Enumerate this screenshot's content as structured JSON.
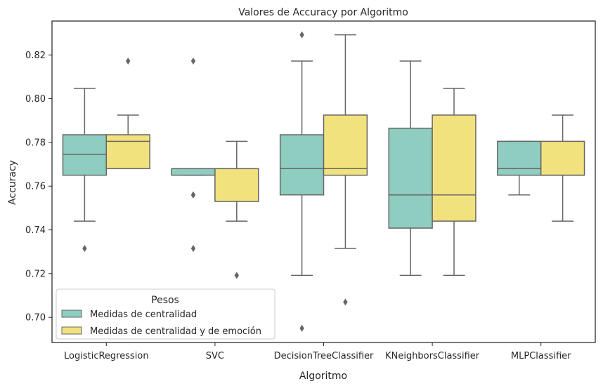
{
  "chart_data": {
    "type": "box",
    "title": "Valores de Accuracy por Algoritmo",
    "xlabel": "Algoritmo",
    "ylabel": "Accuracy",
    "ylim": [
      0.6885,
      0.8355
    ],
    "yticks": [
      0.7,
      0.72,
      0.74,
      0.76,
      0.78,
      0.8,
      0.82
    ],
    "ytick_labels": [
      "0.70",
      "0.72",
      "0.74",
      "0.76",
      "0.78",
      "0.80",
      "0.82"
    ],
    "categories": [
      "LogisticRegression",
      "SVC",
      "DecisionTreeClassifier",
      "KNeighborsClassifier",
      "MLPClassifier"
    ],
    "legend": {
      "title": "Pesos",
      "placement": "lower-left"
    },
    "series": [
      {
        "name": "Medidas de centralidad",
        "color": "#8ecdc0",
        "boxes": [
          {
            "whislo": 0.744,
            "q1": 0.765,
            "med": 0.7745,
            "q3": 0.7835,
            "whishi": 0.8047,
            "fliers": [
              0.7315
            ]
          },
          {
            "whislo": 0.765,
            "q1": 0.765,
            "med": 0.768,
            "q3": 0.768,
            "whishi": 0.768,
            "fliers": [
              0.8172,
              0.756,
              0.756,
              0.7315
            ]
          },
          {
            "whislo": 0.7192,
            "q1": 0.756,
            "med": 0.768,
            "q3": 0.7835,
            "whishi": 0.8172,
            "fliers": [
              0.8292,
              0.695
            ]
          },
          {
            "whislo": 0.7192,
            "q1": 0.7408,
            "med": 0.756,
            "q3": 0.7865,
            "whishi": 0.8172,
            "fliers": []
          },
          {
            "whislo": 0.756,
            "q1": 0.765,
            "med": 0.768,
            "q3": 0.7805,
            "whishi": 0.7805,
            "fliers": []
          }
        ]
      },
      {
        "name": "Medidas de centralidad y de emoción",
        "color": "#f1e27e",
        "boxes": [
          {
            "whislo": 0.768,
            "q1": 0.768,
            "med": 0.7805,
            "q3": 0.7835,
            "whishi": 0.7925,
            "fliers": [
              0.8172
            ]
          },
          {
            "whislo": 0.744,
            "q1": 0.753,
            "med": 0.768,
            "q3": 0.768,
            "whishi": 0.7805,
            "fliers": [
              0.7192
            ]
          },
          {
            "whislo": 0.7315,
            "q1": 0.765,
            "med": 0.768,
            "q3": 0.7925,
            "whishi": 0.8292,
            "fliers": [
              0.707
            ]
          },
          {
            "whislo": 0.7192,
            "q1": 0.744,
            "med": 0.756,
            "q3": 0.7925,
            "whishi": 0.8047,
            "fliers": []
          },
          {
            "whislo": 0.744,
            "q1": 0.765,
            "med": 0.765,
            "q3": 0.7805,
            "whishi": 0.7925,
            "fliers": []
          }
        ]
      }
    ],
    "line_color": "#666666"
  }
}
